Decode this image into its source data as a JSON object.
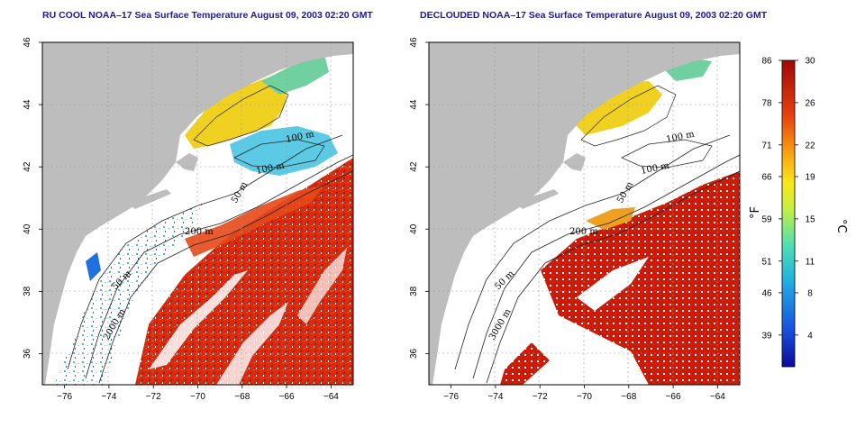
{
  "titles": {
    "left": "RU COOL NOAA–17 Sea Surface Temperature August 09, 2003 02:20 GMT",
    "right": "DECLOUDED NOAA–17 Sea Surface Temperature August 09, 2003 02:20 GMT"
  },
  "maps": {
    "x_ticks": [
      "−76",
      "−74",
      "−72",
      "−70",
      "−68",
      "−66",
      "−64"
    ],
    "y_ticks": [
      "36",
      "38",
      "40",
      "42",
      "44",
      "46"
    ],
    "lon_range": [
      -77,
      -63
    ],
    "lat_range": [
      35,
      46
    ],
    "contour_labels_left": [
      "100 m",
      "100 m",
      "50 m",
      "200 m",
      "50 m",
      "2000 m"
    ],
    "contour_labels_right": [
      "100 m",
      "100 m",
      "50 m",
      "200 m",
      "50 m",
      "3000 m"
    ]
  },
  "colorbar": {
    "fahrenheit_ticks": [
      "86",
      "78",
      "71",
      "66",
      "59",
      "51",
      "46",
      "39"
    ],
    "celsius_ticks": [
      "30",
      "26",
      "22",
      "19",
      "15",
      "11",
      "8",
      "4"
    ],
    "fahrenheit_unit": "°F",
    "celsius_unit": "°C",
    "range_c": [
      1,
      30
    ]
  },
  "colors": {
    "land": "#bdbdbd",
    "title": "#1a1a9a",
    "warm": "#d42a10",
    "mid": "#f0d020",
    "cool": "#40c0c0",
    "cold": "#1030d0"
  }
}
